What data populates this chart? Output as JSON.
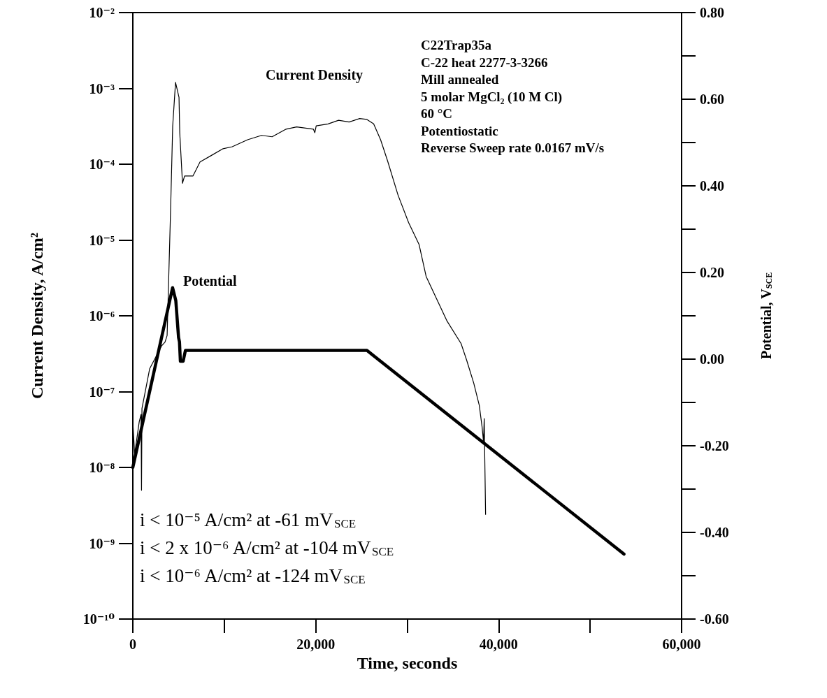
{
  "chart_data": {
    "type": "line",
    "xlabel": "Time, seconds",
    "ylabel": "Current Density, A/cm²",
    "y2label": "Potential, V$_{SCE}$",
    "annotations": [
      "C22Trap35a",
      "C-22 heat 2277-3-3266",
      "Mill annealed",
      "5 molar MgCl₂ (10 M Cl)",
      "60 °C",
      "Potentiostatic",
      "Reverse Sweep rate 0.0167 mV/s",
      "i < 10⁻⁵ A/cm² at -61 mV$_{SCE}$",
      "i < 2 x 10⁻⁶ A/cm² at -104 mV$_{SCE}$",
      "i < 10⁻⁶ A/cm² at -124 mV$_{SCE}$"
    ],
    "series": [
      {
        "name": "Current Density",
        "color": "#000000",
        "x": [
          0,
          200,
          700,
          900,
          950,
          1000,
          1840,
          2600,
          3140,
          3520,
          3750,
          4130,
          4360,
          4670,
          5050,
          5130,
          5430,
          5660,
          6580,
          7350,
          8570,
          9870,
          10870,
          12550,
          14080,
          15230,
          16760,
          17910,
          19740,
          19900,
          20050,
          21350,
          22500,
          23650,
          24800,
          25560,
          26330,
          27090,
          27860,
          29000,
          30150,
          31300,
          32070,
          34360,
          35890,
          36500,
          37270,
          37880,
          38190,
          38340,
          38420,
          38570
        ],
        "values": [
          4e-08,
          1.5e-08,
          4e-08,
          5e-08,
          5e-09,
          6e-08,
          2e-07,
          3e-07,
          4e-07,
          4.5e-07,
          5.5e-07,
          2.5e-05,
          0.00032,
          0.0012,
          0.00076,
          0.00026,
          5.6e-05,
          7e-05,
          7e-05,
          0.000107,
          0.00013,
          0.00016,
          0.00017,
          0.00021,
          0.00024,
          0.00023,
          0.00029,
          0.00031,
          0.00029,
          0.00026,
          0.00032,
          0.00034,
          0.00038,
          0.00036,
          0.0004,
          0.00039,
          0.00034,
          0.00021,
          0.00011,
          3.9e-05,
          1.7e-05,
          8.7e-06,
          3.3e-06,
          8.5e-07,
          4.3e-07,
          2.6e-07,
          1.3e-07,
          6.6e-08,
          3.4e-08,
          2.2e-08,
          4.4e-08,
          2.4e-09
        ]
      },
      {
        "name": "Potential",
        "color": "#000000",
        "axis": "y2",
        "x": [
          0,
          4350,
          4700,
          5000,
          5100,
          5200,
          5500,
          5750,
          25600,
          53700
        ],
        "values": [
          -0.25,
          0.165,
          0.135,
          0.05,
          0.04,
          -0.005,
          -0.005,
          0.02,
          0.02,
          -0.45
        ]
      }
    ],
    "xlim": [
      0,
      60000
    ],
    "xticks": [
      0,
      {
        "value": 20000,
        "label": "20,000"
      },
      {
        "value": 40000,
        "label": "40,000"
      },
      {
        "value": 60000,
        "label": "60,000"
      }
    ],
    "ylim": [
      1e-10,
      0.01
    ],
    "yticks": [
      {
        "value": 1e-10,
        "label": "10⁻¹⁰"
      },
      {
        "value": 1e-09,
        "label": "10⁻⁹"
      },
      {
        "value": 1e-08,
        "label": "10⁻⁸"
      },
      {
        "value": 1e-07,
        "label": "10⁻⁷"
      },
      {
        "value": 1e-06,
        "label": "10⁻⁶"
      },
      {
        "value": 1e-05,
        "label": "10⁻⁵"
      },
      {
        "value": 0.0001,
        "label": "10⁻⁴"
      },
      {
        "value": 0.001,
        "label": "10⁻³"
      },
      {
        "value": 0.01,
        "label": "10⁻²"
      }
    ],
    "y2lim": [
      -0.6,
      0.8
    ],
    "y2ticks": [
      {
        "value": -0.6,
        "label": "-0.60"
      },
      {
        "value": -0.4,
        "label": "-0.40"
      },
      {
        "value": -0.2,
        "label": "-0.20"
      },
      {
        "value": 0,
        "label": "0.00"
      },
      {
        "value": 0.2,
        "label": "0.20"
      },
      {
        "value": 0.4,
        "label": "0.40"
      },
      {
        "value": 0.6,
        "label": "0.60"
      },
      {
        "value": 0.8,
        "label": "0.80"
      }
    ],
    "log": "y",
    "grid": false,
    "legend": false,
    "marker": "none"
  }
}
